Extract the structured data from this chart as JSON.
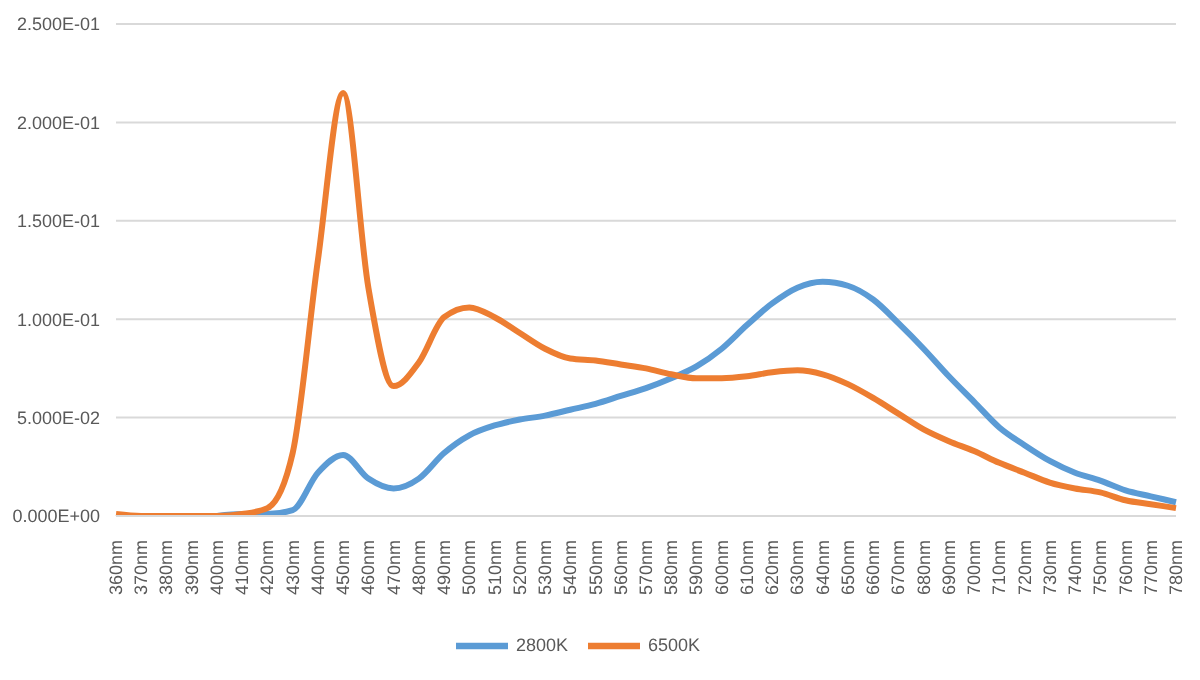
{
  "chart_data": {
    "type": "line",
    "categories": [
      "360nm",
      "370nm",
      "380nm",
      "390nm",
      "400nm",
      "410nm",
      "420nm",
      "430nm",
      "440nm",
      "450nm",
      "460nm",
      "470nm",
      "480nm",
      "490nm",
      "500nm",
      "510nm",
      "520nm",
      "530nm",
      "540nm",
      "550nm",
      "560nm",
      "570nm",
      "580nm",
      "590nm",
      "600nm",
      "610nm",
      "620nm",
      "630nm",
      "640nm",
      "650nm",
      "660nm",
      "670nm",
      "680nm",
      "690nm",
      "700nm",
      "710nm",
      "720nm",
      "730nm",
      "740nm",
      "750nm",
      "760nm",
      "770nm",
      "780nm"
    ],
    "series": [
      {
        "name": "2800K",
        "color": "#5b9bd5",
        "values": [
          null,
          null,
          null,
          null,
          0,
          0.001,
          0.001,
          0.003,
          0.022,
          0.031,
          0.019,
          0.014,
          0.019,
          0.032,
          0.041,
          0.046,
          0.049,
          0.051,
          0.054,
          0.057,
          0.061,
          0.065,
          0.07,
          0.076,
          0.085,
          0.097,
          0.108,
          0.116,
          0.119,
          0.117,
          0.11,
          0.098,
          0.085,
          0.071,
          0.058,
          0.045,
          0.036,
          0.028,
          0.022,
          0.018,
          0.013,
          0.01,
          0.007
        ]
      },
      {
        "name": "6500K",
        "color": "#ed7d31",
        "values": [
          0.001,
          0,
          0,
          0,
          0,
          0.001,
          0.004,
          0.032,
          0.13,
          0.215,
          0.116,
          0.066,
          0.078,
          0.101,
          0.106,
          0.101,
          0.093,
          0.085,
          0.08,
          0.079,
          0.077,
          0.075,
          0.072,
          0.07,
          0.07,
          0.071,
          0.073,
          0.074,
          0.072,
          0.067,
          0.06,
          0.052,
          0.044,
          0.038,
          0.033,
          0.027,
          0.022,
          0.017,
          0.014,
          0.012,
          0.008,
          0.006,
          0.004
        ]
      }
    ],
    "ylim": [
      0,
      0.25
    ],
    "yticks": [
      {
        "value": 0,
        "label": "0.000E+00"
      },
      {
        "value": 0.05,
        "label": "5.000E-02"
      },
      {
        "value": 0.1,
        "label": "1.000E-01"
      },
      {
        "value": 0.15,
        "label": "1.500E-01"
      },
      {
        "value": 0.2,
        "label": "2.000E-01"
      },
      {
        "value": 0.25,
        "label": "2.500E-01"
      }
    ],
    "grid": "y",
    "legend": "bottom",
    "marker": "none",
    "line_style": "solid"
  }
}
